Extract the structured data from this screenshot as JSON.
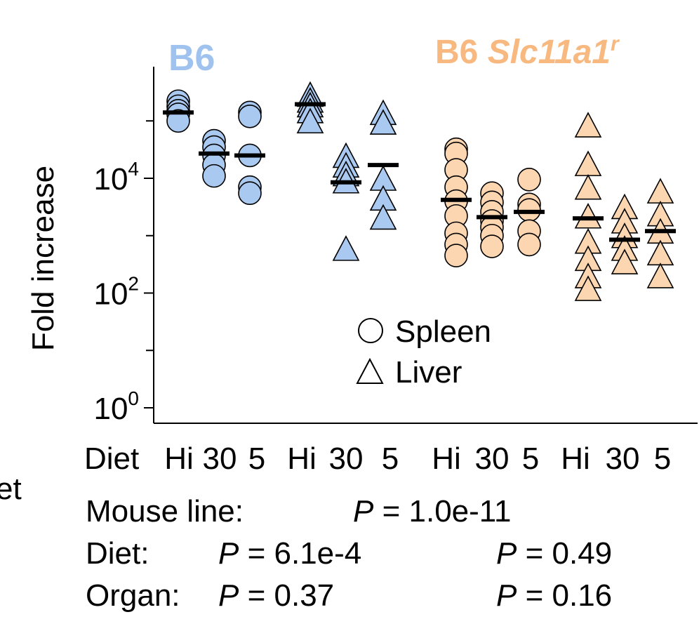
{
  "chart_data": {
    "type": "scatter",
    "ylabel": "Fold increase",
    "yscale": "log",
    "ylim": [
      1,
      700000
    ],
    "yticks": [
      {
        "value": 1,
        "base": "10",
        "exp": "0"
      },
      {
        "value": 100,
        "base": "10",
        "exp": "2"
      },
      {
        "value": 10000,
        "base": "10",
        "exp": "4"
      }
    ],
    "minor_ticks": [
      10,
      1000,
      100000
    ],
    "groups": [
      {
        "label": "B6",
        "color": "#a9c9f0",
        "label_color": "#9fc3ee"
      },
      {
        "label": "B6",
        "label_italic": "Slc11a1",
        "label_sup": "r",
        "color": "#fcd6b0",
        "label_color": "#f8b980"
      }
    ],
    "x_axis_title": "Diet",
    "legend": {
      "placement": "center",
      "entries": [
        {
          "marker": "circle",
          "label": "Spleen"
        },
        {
          "marker": "triangle",
          "label": "Liver"
        }
      ]
    },
    "series": [
      {
        "group": 0,
        "organ": "Spleen",
        "diet": "Hi",
        "values": [
          220000,
          180000,
          150000,
          130000,
          100000
        ],
        "median": 140000
      },
      {
        "group": 0,
        "organ": "Spleen",
        "diet": "30",
        "values": [
          45000,
          35000,
          25000,
          17000,
          11000
        ],
        "median": 27000
      },
      {
        "group": 0,
        "organ": "Spleen",
        "diet": "5",
        "values": [
          140000,
          120000,
          25000,
          7000,
          5500
        ],
        "median": 25000
      },
      {
        "group": 0,
        "organ": "Liver",
        "diet": "Hi",
        "values": [
          290000,
          230000,
          190000,
          150000,
          100000
        ],
        "median": 195000
      },
      {
        "group": 0,
        "organ": "Liver",
        "diet": "30",
        "values": [
          25000,
          17000,
          12000,
          9000,
          600
        ],
        "median": 8500
      },
      {
        "group": 0,
        "organ": "Liver",
        "diet": "5",
        "values": [
          140000,
          95000,
          10000,
          4500,
          2100
        ],
        "median": 17000
      },
      {
        "group": 1,
        "organ": "Spleen",
        "diet": "Hi",
        "values": [
          32000,
          27000,
          14000,
          7000,
          4000,
          2200,
          1100,
          700,
          450
        ],
        "median": 4200
      },
      {
        "group": 1,
        "organ": "Spleen",
        "diet": "30",
        "values": [
          5500,
          3800,
          2600,
          1800,
          1400,
          1000,
          650
        ],
        "median": 2100
      },
      {
        "group": 1,
        "organ": "Spleen",
        "diet": "5",
        "values": [
          9500,
          3500,
          2800,
          1200,
          700
        ],
        "median": 2600
      },
      {
        "group": 1,
        "organ": "Liver",
        "diet": "Hi",
        "values": [
          85000,
          18000,
          7000,
          2200,
          800,
          400,
          200,
          120
        ],
        "median": 2000
      },
      {
        "group": 1,
        "organ": "Liver",
        "diet": "30",
        "values": [
          3200,
          1800,
          1000,
          600,
          350
        ],
        "median": 850
      },
      {
        "group": 1,
        "organ": "Liver",
        "diet": "5",
        "values": [
          6000,
          2400,
          1200,
          500,
          200
        ],
        "median": 1200
      }
    ],
    "x_tick_labels": [
      "Hi",
      "30",
      "5",
      "Hi",
      "30",
      "5",
      "Hi",
      "30",
      "5",
      "Hi",
      "30",
      "5"
    ]
  },
  "stats": {
    "partial_label": "et",
    "rows": [
      {
        "label": "Mouse line:",
        "p_symbol": "P",
        "b6": "= 1.0e-11",
        "slc": ""
      },
      {
        "label": "Diet:",
        "p_symbol": "P",
        "b6": "= 6.1e-4",
        "slc": "= 0.49"
      },
      {
        "label": "Organ:",
        "p_symbol": "P",
        "b6": "= 0.37",
        "slc": "= 0.16"
      }
    ]
  }
}
